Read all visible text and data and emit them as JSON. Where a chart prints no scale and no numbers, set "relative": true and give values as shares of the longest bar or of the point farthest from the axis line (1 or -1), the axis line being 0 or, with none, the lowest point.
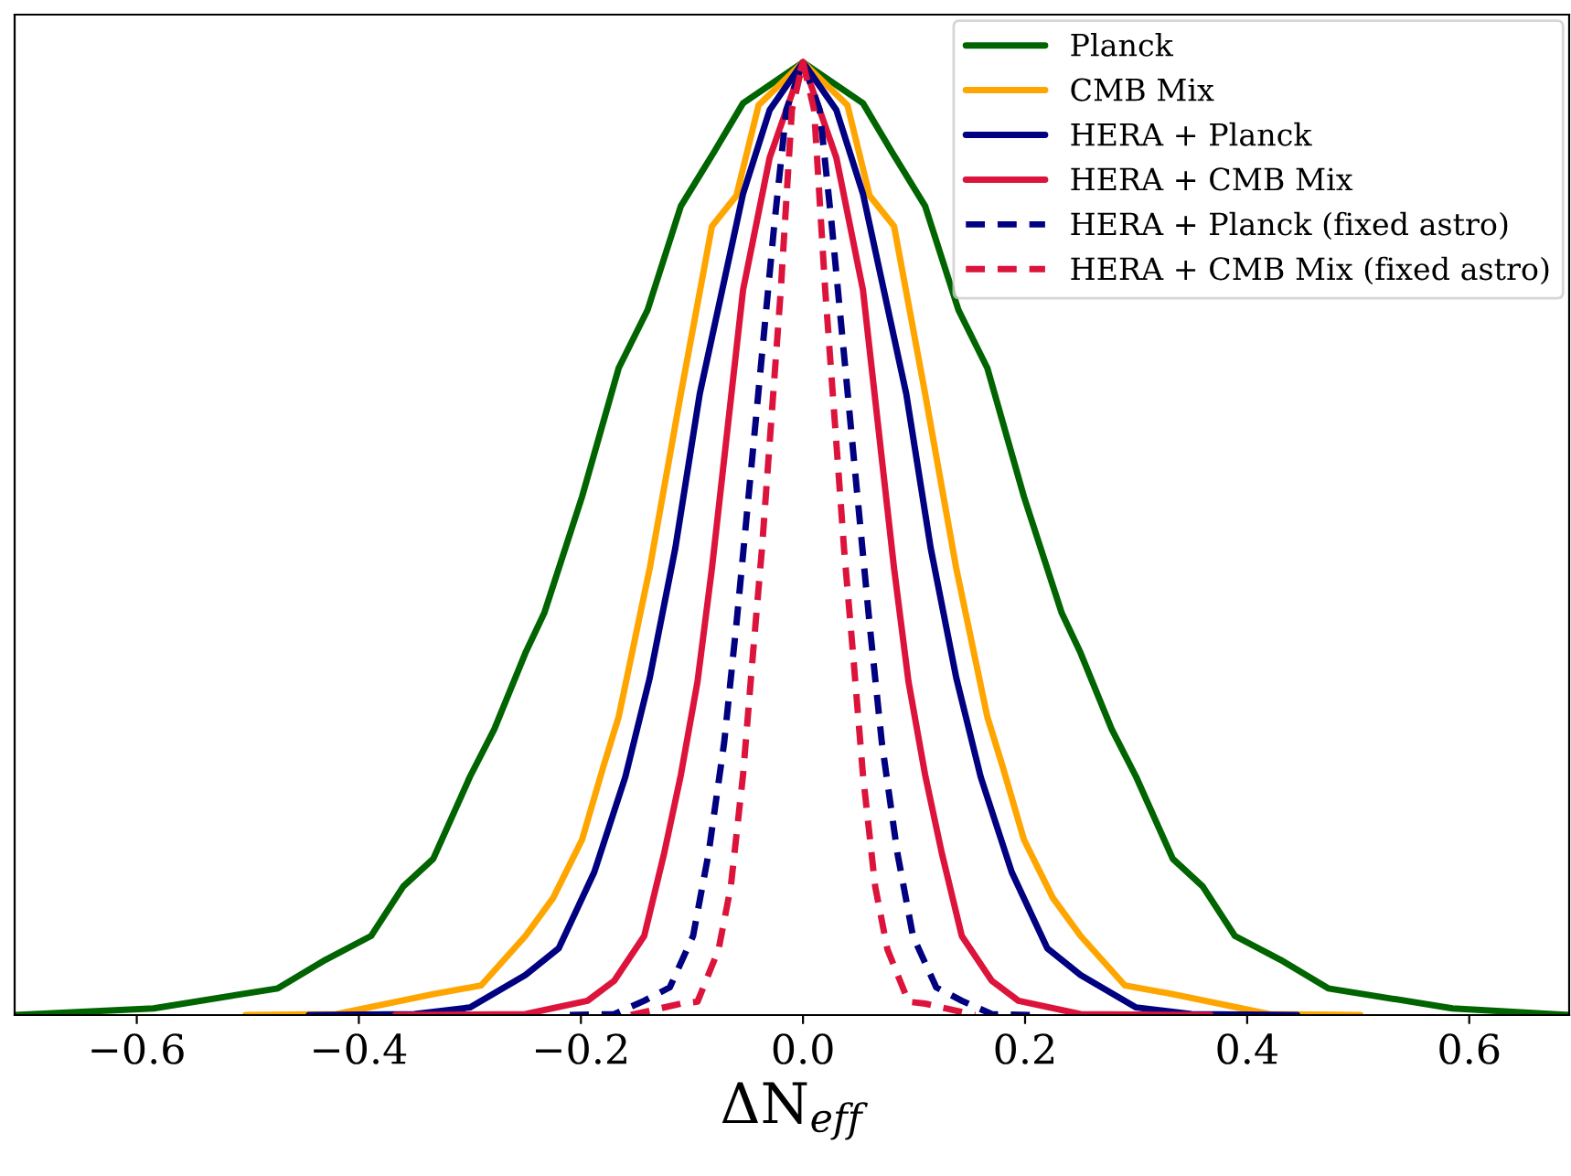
{
  "chart_data": {
    "type": "line",
    "xlabel": "ΔN$_{eff}$",
    "relative": true,
    "xlim": [
      -0.71,
      0.69
    ],
    "xticks": [
      {
        "value": -0.6,
        "label": "−0.6"
      },
      {
        "value": -0.4,
        "label": "−0.4"
      },
      {
        "value": -0.2,
        "label": "−0.2"
      },
      {
        "value": 0,
        "label": "0.0"
      },
      {
        "value": 0.2,
        "label": "0.2"
      },
      {
        "value": 0.4,
        "label": "0.4"
      },
      {
        "value": 0.6,
        "label": "0.6"
      }
    ],
    "tick_labels": "x",
    "legend": "top right",
    "grid": false,
    "series": [
      {
        "name": "Planck",
        "color": "#006400",
        "line_style": "solid",
        "x": [
          -0.71,
          -0.585,
          -0.473,
          -0.43,
          -0.389,
          -0.36,
          -0.333,
          -0.3,
          -0.278,
          -0.25,
          -0.233,
          -0.199,
          -0.166,
          -0.14,
          -0.11,
          -0.08,
          -0.054,
          0,
          0.054,
          0.08,
          0.11,
          0.14,
          0.166,
          0.199,
          0.233,
          0.25,
          0.278,
          0.3,
          0.333,
          0.36,
          0.389,
          0.43,
          0.473,
          0.585,
          0.69
        ],
        "values": [
          0,
          0.007,
          0.028,
          0.058,
          0.083,
          0.135,
          0.164,
          0.25,
          0.3,
          0.38,
          0.422,
          0.544,
          0.679,
          0.74,
          0.849,
          0.906,
          0.957,
          1,
          0.957,
          0.906,
          0.849,
          0.74,
          0.679,
          0.544,
          0.422,
          0.38,
          0.3,
          0.25,
          0.164,
          0.135,
          0.083,
          0.058,
          0.028,
          0.007,
          0
        ]
      },
      {
        "name": "CMB Mix",
        "color": "#ffa500",
        "line_style": "solid",
        "x": [
          -0.502,
          -0.42,
          -0.333,
          -0.29,
          -0.25,
          -0.225,
          -0.199,
          -0.18,
          -0.166,
          -0.138,
          -0.11,
          -0.082,
          -0.06,
          -0.04,
          0,
          0.04,
          0.06,
          0.082,
          0.11,
          0.138,
          0.166,
          0.18,
          0.199,
          0.225,
          0.25,
          0.29,
          0.333,
          0.42,
          0.502
        ],
        "values": [
          0,
          0.001,
          0.022,
          0.031,
          0.083,
          0.123,
          0.184,
          0.26,
          0.313,
          0.469,
          0.652,
          0.828,
          0.86,
          0.955,
          1,
          0.955,
          0.86,
          0.828,
          0.652,
          0.469,
          0.313,
          0.26,
          0.184,
          0.123,
          0.083,
          0.031,
          0.022,
          0.001,
          0
        ]
      },
      {
        "name": "HERA + Planck",
        "color": "#000080",
        "line_style": "solid",
        "x": [
          -0.445,
          -0.35,
          -0.3,
          -0.25,
          -0.22,
          -0.188,
          -0.16,
          -0.138,
          -0.115,
          -0.093,
          -0.054,
          -0.03,
          0,
          0.03,
          0.054,
          0.093,
          0.115,
          0.138,
          0.16,
          0.188,
          0.22,
          0.25,
          0.3,
          0.35,
          0.445
        ],
        "values": [
          0,
          0.001,
          0.008,
          0.042,
          0.07,
          0.15,
          0.25,
          0.354,
          0.49,
          0.652,
          0.862,
          0.95,
          1,
          0.95,
          0.862,
          0.652,
          0.49,
          0.354,
          0.25,
          0.15,
          0.07,
          0.042,
          0.008,
          0.001,
          0
        ]
      },
      {
        "name": "HERA + CMB Mix",
        "color": "#dc143c",
        "line_style": "solid",
        "x": [
          -0.367,
          -0.25,
          -0.194,
          -0.17,
          -0.143,
          -0.125,
          -0.11,
          -0.095,
          -0.082,
          -0.054,
          -0.03,
          0,
          0.03,
          0.054,
          0.082,
          0.095,
          0.11,
          0.125,
          0.143,
          0.17,
          0.194,
          0.25,
          0.367
        ],
        "values": [
          0,
          0.001,
          0.015,
          0.036,
          0.083,
          0.17,
          0.252,
          0.35,
          0.469,
          0.761,
          0.9,
          1,
          0.9,
          0.761,
          0.469,
          0.35,
          0.252,
          0.17,
          0.083,
          0.036,
          0.015,
          0.001,
          0
        ]
      },
      {
        "name": "HERA + Planck (fixed astro)",
        "color": "#000080",
        "line_style": "dashed",
        "x": [
          -0.21,
          -0.17,
          -0.143,
          -0.12,
          -0.099,
          -0.085,
          -0.071,
          -0.06,
          -0.048,
          -0.026,
          -0.015,
          0,
          0.015,
          0.026,
          0.048,
          0.06,
          0.071,
          0.085,
          0.099,
          0.12,
          0.143,
          0.17,
          0.21
        ],
        "values": [
          0,
          0.001,
          0.015,
          0.029,
          0.083,
          0.17,
          0.286,
          0.41,
          0.557,
          0.828,
          0.95,
          1,
          0.95,
          0.828,
          0.557,
          0.41,
          0.286,
          0.17,
          0.083,
          0.029,
          0.015,
          0.001,
          0
        ]
      },
      {
        "name": "HERA + CMB Mix (fixed astro)",
        "color": "#dc143c",
        "line_style": "dashed",
        "x": [
          -0.155,
          -0.11,
          -0.095,
          -0.076,
          -0.065,
          -0.054,
          -0.045,
          -0.037,
          -0.02,
          -0.01,
          0,
          0.01,
          0.02,
          0.037,
          0.045,
          0.054,
          0.065,
          0.076,
          0.095,
          0.11,
          0.155
        ],
        "values": [
          0,
          0.012,
          0.014,
          0.069,
          0.135,
          0.252,
          0.38,
          0.489,
          0.761,
          0.95,
          1,
          0.95,
          0.761,
          0.489,
          0.38,
          0.252,
          0.135,
          0.069,
          0.014,
          0.012,
          0
        ]
      }
    ]
  }
}
